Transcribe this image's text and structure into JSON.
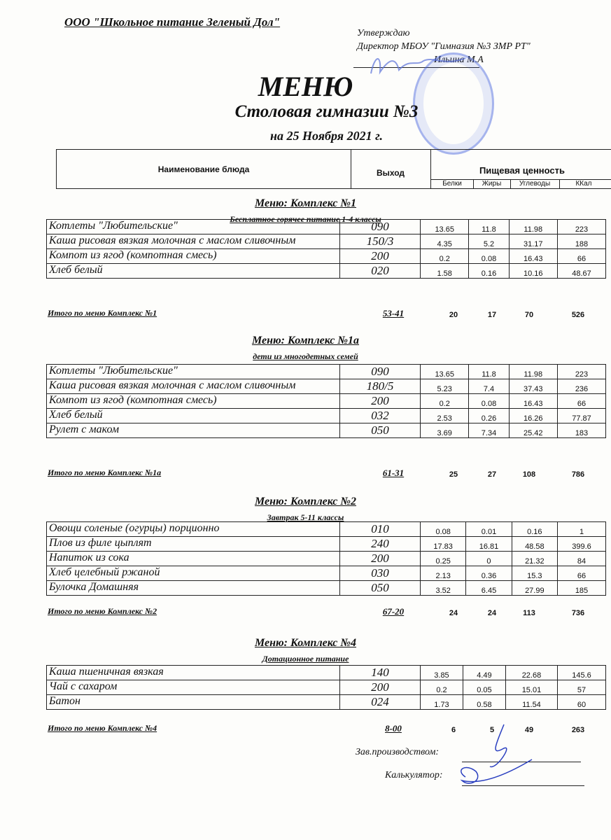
{
  "organization": "ООО \"Школьное питание Зеленый Дол\"",
  "approval": {
    "line1": "Утверждаю",
    "line2": "Директор МБОУ \"Гимназия №3 ЗМР РТ\"",
    "name": "Ильина М.А"
  },
  "title": "МЕНЮ",
  "subtitle": "Столовая гимназии №3",
  "date": "на 25 Ноября 2021 г.",
  "header": {
    "name": "Наименование блюда",
    "output": "Выход",
    "nutrition": "Пищевая ценность",
    "cols": [
      "Белки",
      "Жиры",
      "Углеводы",
      "ККал"
    ]
  },
  "sections": [
    {
      "title": "Меню: Комплекс №1",
      "subtitle": "Бесплатное горячее питание  1-4 классы",
      "rows": [
        [
          "Котлеты  \"Любительские\"",
          "090",
          "13.65",
          "11.8",
          "11.98",
          "223"
        ],
        [
          "Каша рисовая вязкая молочная с маслом сливочным",
          "150/3",
          "4.35",
          "5.2",
          "31.17",
          "188"
        ],
        [
          "Компот из  ягод (компотная смесь)",
          "200",
          "0.2",
          "0.08",
          "16.43",
          "66"
        ],
        [
          "Хлеб белый",
          "020",
          "1.58",
          "0.16",
          "10.16",
          "48.67"
        ]
      ],
      "total": {
        "label": "Итого по меню Комплекс №1",
        "output": "53-41",
        "values": [
          "20",
          "17",
          "70",
          "526"
        ]
      }
    },
    {
      "title": "Меню: Комплекс №1а",
      "subtitle": "дети из многодетных семей",
      "rows": [
        [
          "Котлеты  \"Любительские\"",
          "090",
          "13.65",
          "11.8",
          "11.98",
          "223"
        ],
        [
          "Каша рисовая вязкая молочная с маслом сливочным",
          "180/5",
          "5.23",
          "7.4",
          "37.43",
          "236"
        ],
        [
          "Компот из  ягод (компотная смесь)",
          "200",
          "0.2",
          "0.08",
          "16.43",
          "66"
        ],
        [
          "Хлеб белый",
          "032",
          "2.53",
          "0.26",
          "16.26",
          "77.87"
        ],
        [
          "Рулет с маком",
          "050",
          "3.69",
          "7.34",
          "25.42",
          "183"
        ]
      ],
      "total": {
        "label": "Итого по меню Комплекс №1а",
        "output": "61-31",
        "values": [
          "25",
          "27",
          "108",
          "786"
        ]
      }
    },
    {
      "title": "Меню: Комплекс №2",
      "subtitle": "Завтрак 5-11 классы",
      "rows": [
        [
          "Овощи соленые (огурцы) порционно",
          "010",
          "0.08",
          "0.01",
          "0.16",
          "1"
        ],
        [
          "Плов из филе цыплят",
          "240",
          "17.83",
          "16.81",
          "48.58",
          "399.6"
        ],
        [
          "Напиток  из сока",
          "200",
          "0.25",
          "0",
          "21.32",
          "84"
        ],
        [
          "Хлеб  целебный ржаной",
          "030",
          "2.13",
          "0.36",
          "15.3",
          "66"
        ],
        [
          "Булочка Домашняя",
          "050",
          "3.52",
          "6.45",
          "27.99",
          "185"
        ]
      ],
      "total": {
        "label": "Итого по меню Комплекс №2",
        "output": "67-20",
        "values": [
          "24",
          "24",
          "113",
          "736"
        ]
      }
    },
    {
      "title": "Меню: Комплекс №4",
      "subtitle": "Дотационное питание",
      "rows": [
        [
          "Каша пшеничная вязкая",
          "140",
          "3.85",
          "4.49",
          "22.68",
          "145.6"
        ],
        [
          "Чай с сахаром",
          "200",
          "0.2",
          "0.05",
          "15.01",
          "57"
        ],
        [
          "Батон",
          "024",
          "1.73",
          "0.58",
          "11.54",
          "60"
        ]
      ],
      "total": {
        "label": "Итого по меню Комплекс №4",
        "output": "8-00",
        "values": [
          "6",
          "5",
          "49",
          "263"
        ]
      }
    }
  ],
  "footer": {
    "production": "Зав.производством:",
    "calculator": "Калькулятор:"
  },
  "colors": {
    "ink": "#111111",
    "stamp": "#3c5adc",
    "signature": "#2a3fc0"
  }
}
